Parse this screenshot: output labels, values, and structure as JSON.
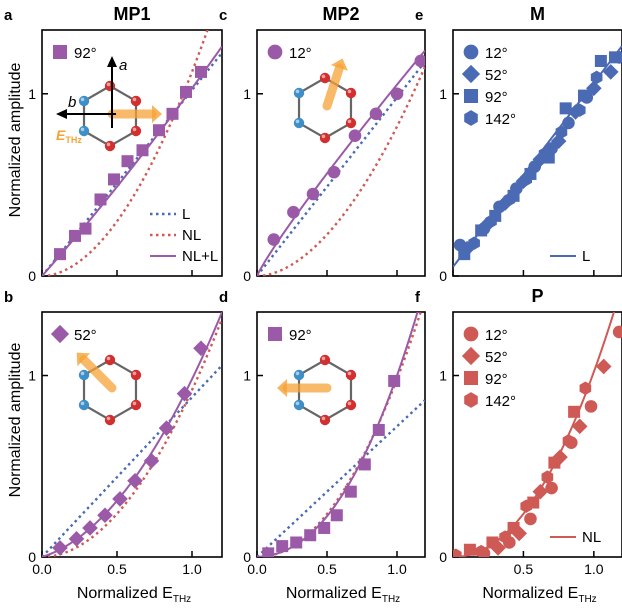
{
  "figure": {
    "ylabel": "Normalized amplitude",
    "xlabel_main": "Normalized E",
    "xlabel_sub": "THz",
    "inset_axis_a": "a",
    "inset_axis_b": "b",
    "inset_field_main": "E",
    "inset_field_sub": "THz"
  },
  "colors": {
    "purple": "#9b5aa8",
    "blue": "#4a6ab4",
    "red": "#cf5a55",
    "arrow_orange": "#f5a235",
    "atom_red": "#d22f2f",
    "atom_blue": "#3e8fc8"
  },
  "chart_data": [
    {
      "id": "a",
      "label": "a",
      "title": "MP1",
      "type": "scatter",
      "xlim": [
        0,
        1.2
      ],
      "ylim": [
        0,
        1.35
      ],
      "xticks": [],
      "yticks": [
        0,
        1
      ],
      "marker_legend": [
        {
          "marker": "square",
          "label": "92°"
        }
      ],
      "line_legend": [
        "L",
        "NL",
        "NL+L"
      ],
      "series": [
        {
          "name": "92°",
          "marker": "square",
          "color": "purple",
          "x": [
            0.12,
            0.22,
            0.29,
            0.39,
            0.48,
            0.57,
            0.67,
            0.78,
            0.87,
            0.96,
            1.06
          ],
          "y": [
            0.12,
            0.22,
            0.26,
            0.42,
            0.53,
            0.63,
            0.69,
            0.8,
            0.89,
            1.01,
            1.12
          ]
        }
      ],
      "fits": [
        {
          "name": "L",
          "style": "dotted",
          "color": "blue",
          "a": 1.02,
          "p": 1
        },
        {
          "name": "NL",
          "style": "dotted",
          "color": "red",
          "a": 1.12,
          "p": 1.9
        },
        {
          "name": "NL+L",
          "style": "solid",
          "color": "purple",
          "a": 0.93,
          "p": 1,
          "b": 0.1,
          "q": 2
        }
      ],
      "inset": {
        "arrow_angle": 0,
        "axes": true
      }
    },
    {
      "id": "b",
      "label": "b",
      "title": "",
      "type": "scatter",
      "xlim": [
        0,
        1.2
      ],
      "ylim": [
        0,
        1.35
      ],
      "xticks": [
        "0.0",
        "0.5",
        "1.0"
      ],
      "yticks": [
        0,
        1
      ],
      "marker_legend": [
        {
          "marker": "diamond",
          "label": "52°"
        }
      ],
      "series": [
        {
          "name": "52°",
          "marker": "diamond",
          "color": "purple",
          "x": [
            0.12,
            0.23,
            0.32,
            0.42,
            0.52,
            0.62,
            0.73,
            0.83,
            0.95,
            1.06
          ],
          "y": [
            0.05,
            0.1,
            0.16,
            0.23,
            0.32,
            0.42,
            0.53,
            0.71,
            0.9,
            1.15
          ]
        }
      ],
      "fits": [
        {
          "name": "L",
          "style": "dotted",
          "color": "blue",
          "a": 0.88,
          "p": 1
        },
        {
          "name": "NL",
          "style": "dotted",
          "color": "red",
          "a": 0.92,
          "p": 1.95
        },
        {
          "name": "NL+L",
          "style": "solid",
          "color": "purple",
          "a": 0.26,
          "p": 1,
          "b": 0.72,
          "q": 2
        }
      ],
      "inset": {
        "arrow_angle": 135,
        "axes": false
      }
    },
    {
      "id": "c",
      "label": "c",
      "title": "MP2",
      "type": "scatter",
      "xlim": [
        0,
        1.2
      ],
      "ylim": [
        0,
        1.35
      ],
      "xticks": [],
      "yticks": [
        0,
        1
      ],
      "marker_legend": [
        {
          "marker": "circle",
          "label": "12°"
        }
      ],
      "series": [
        {
          "name": "12°",
          "marker": "circle",
          "color": "purple",
          "x": [
            0.12,
            0.26,
            0.4,
            0.55,
            0.7,
            0.85,
            1.0,
            1.17
          ],
          "y": [
            0.2,
            0.35,
            0.45,
            0.57,
            0.77,
            0.89,
            1.0,
            1.18
          ]
        }
      ],
      "fits": [
        {
          "name": "L",
          "style": "dotted",
          "color": "blue",
          "a": 0.98,
          "p": 1
        },
        {
          "name": "NL",
          "style": "dotted",
          "color": "red",
          "a": 0.82,
          "p": 1.85
        },
        {
          "name": "NL+L",
          "style": "solid",
          "color": "purple",
          "a": 1.05,
          "p": 0.9,
          "b": 0,
          "q": 2
        }
      ],
      "inset": {
        "arrow_angle": 72,
        "axes": false
      }
    },
    {
      "id": "d",
      "label": "d",
      "title": "",
      "type": "scatter",
      "xlim": [
        0,
        1.2
      ],
      "ylim": [
        0,
        1.35
      ],
      "xticks": [
        "0.0",
        "0.5",
        "1.0"
      ],
      "yticks": [
        0,
        1
      ],
      "marker_legend": [
        {
          "marker": "square",
          "label": "92°"
        }
      ],
      "series": [
        {
          "name": "92°",
          "marker": "square",
          "color": "purple",
          "x": [
            0.08,
            0.18,
            0.28,
            0.38,
            0.48,
            0.57,
            0.67,
            0.77,
            0.87,
            0.98
          ],
          "y": [
            0.02,
            0.06,
            0.08,
            0.12,
            0.16,
            0.23,
            0.36,
            0.51,
            0.7,
            0.97
          ]
        }
      ],
      "fits": [
        {
          "name": "L",
          "style": "dotted",
          "color": "blue",
          "a": 0.72,
          "p": 1
        },
        {
          "name": "NL",
          "style": "dotted",
          "color": "red",
          "a": 0.98,
          "p": 2.05
        },
        {
          "name": "NL+L",
          "style": "solid",
          "color": "purple",
          "a": 0.05,
          "p": 1,
          "b": 0.95,
          "q": 2.25
        }
      ],
      "inset": {
        "arrow_angle": 180,
        "axes": false
      }
    },
    {
      "id": "e",
      "label": "e",
      "title": "M",
      "type": "scatter",
      "xlim": [
        0,
        1.2
      ],
      "ylim": [
        0,
        1.35
      ],
      "xticks": [],
      "yticks": [
        0,
        1
      ],
      "marker_legend": [
        {
          "marker": "circle",
          "label": "12°"
        },
        {
          "marker": "diamond",
          "label": "52°"
        },
        {
          "marker": "square",
          "label": "92°"
        },
        {
          "marker": "hexagon",
          "label": "142°"
        }
      ],
      "line_legend": [
        "L"
      ],
      "series": [
        {
          "name": "12°",
          "marker": "circle",
          "color": "blue",
          "x": [
            0.05,
            0.22,
            0.33,
            0.45,
            0.58,
            0.7,
            0.82,
            0.95
          ],
          "y": [
            0.17,
            0.26,
            0.38,
            0.48,
            0.6,
            0.7,
            0.84,
            0.98
          ]
        },
        {
          "name": "52°",
          "marker": "diamond",
          "color": "blue",
          "x": [
            0.1,
            0.24,
            0.37,
            0.5,
            0.62,
            0.75,
            0.87,
            1.0,
            1.12
          ],
          "y": [
            0.15,
            0.28,
            0.4,
            0.52,
            0.64,
            0.74,
            0.9,
            1.03,
            1.12
          ]
        },
        {
          "name": "92°",
          "marker": "square",
          "color": "blue",
          "x": [
            0.08,
            0.2,
            0.3,
            0.43,
            0.55,
            0.68,
            0.8,
            0.93,
            1.05,
            1.15
          ],
          "y": [
            0.12,
            0.25,
            0.33,
            0.44,
            0.56,
            0.65,
            0.92,
            0.99,
            1.18,
            1.2
          ]
        },
        {
          "name": "142°",
          "marker": "hexagon",
          "color": "blue",
          "x": [
            0.15,
            0.27,
            0.4,
            0.52,
            0.65,
            0.77,
            0.9,
            1.02,
            1.18
          ],
          "y": [
            0.18,
            0.3,
            0.42,
            0.53,
            0.67,
            0.79,
            0.91,
            1.09,
            1.2
          ]
        }
      ],
      "fits": [
        {
          "name": "L",
          "style": "solid",
          "color": "blue",
          "a": 1.01,
          "p": 1,
          "c": 0.05
        }
      ],
      "inset": null
    },
    {
      "id": "f",
      "label": "f",
      "title": "P",
      "type": "scatter",
      "xlim": [
        0,
        1.2
      ],
      "ylim": [
        0,
        1.35
      ],
      "xticks": [
        "0.5",
        "1.0"
      ],
      "yticks": [
        0,
        1
      ],
      "marker_legend": [
        {
          "marker": "circle",
          "label": "12°"
        },
        {
          "marker": "diamond",
          "label": "52°"
        },
        {
          "marker": "square",
          "label": "92°"
        },
        {
          "marker": "hexagon",
          "label": "142°"
        }
      ],
      "line_legend": [
        "NL"
      ],
      "series": [
        {
          "name": "12°",
          "marker": "circle",
          "color": "red",
          "x": [
            0.22,
            0.4,
            0.55,
            0.7,
            0.84,
            0.98,
            1.18
          ],
          "y": [
            0.02,
            0.08,
            0.21,
            0.38,
            0.63,
            0.83,
            1.24
          ]
        },
        {
          "name": "52°",
          "marker": "diamond",
          "color": "red",
          "x": [
            0.32,
            0.47,
            0.62,
            0.76,
            0.9,
            1.07
          ],
          "y": [
            0.05,
            0.13,
            0.36,
            0.55,
            0.72,
            1.05
          ]
        },
        {
          "name": "92°",
          "marker": "square",
          "color": "red",
          "x": [
            0.12,
            0.28,
            0.43,
            0.57,
            0.72,
            0.86
          ],
          "y": [
            0.04,
            0.08,
            0.16,
            0.3,
            0.52,
            0.8
          ]
        },
        {
          "name": "142°",
          "marker": "hexagon",
          "color": "red",
          "x": [
            0.02,
            0.2,
            0.37,
            0.52,
            0.67,
            0.82,
            0.94
          ],
          "y": [
            0.01,
            0.03,
            0.11,
            0.28,
            0.44,
            0.64,
            0.93
          ]
        }
      ],
      "fits": [
        {
          "name": "NL",
          "style": "solid",
          "color": "red",
          "a": 1.02,
          "p": 2.1
        }
      ],
      "inset": null
    }
  ]
}
